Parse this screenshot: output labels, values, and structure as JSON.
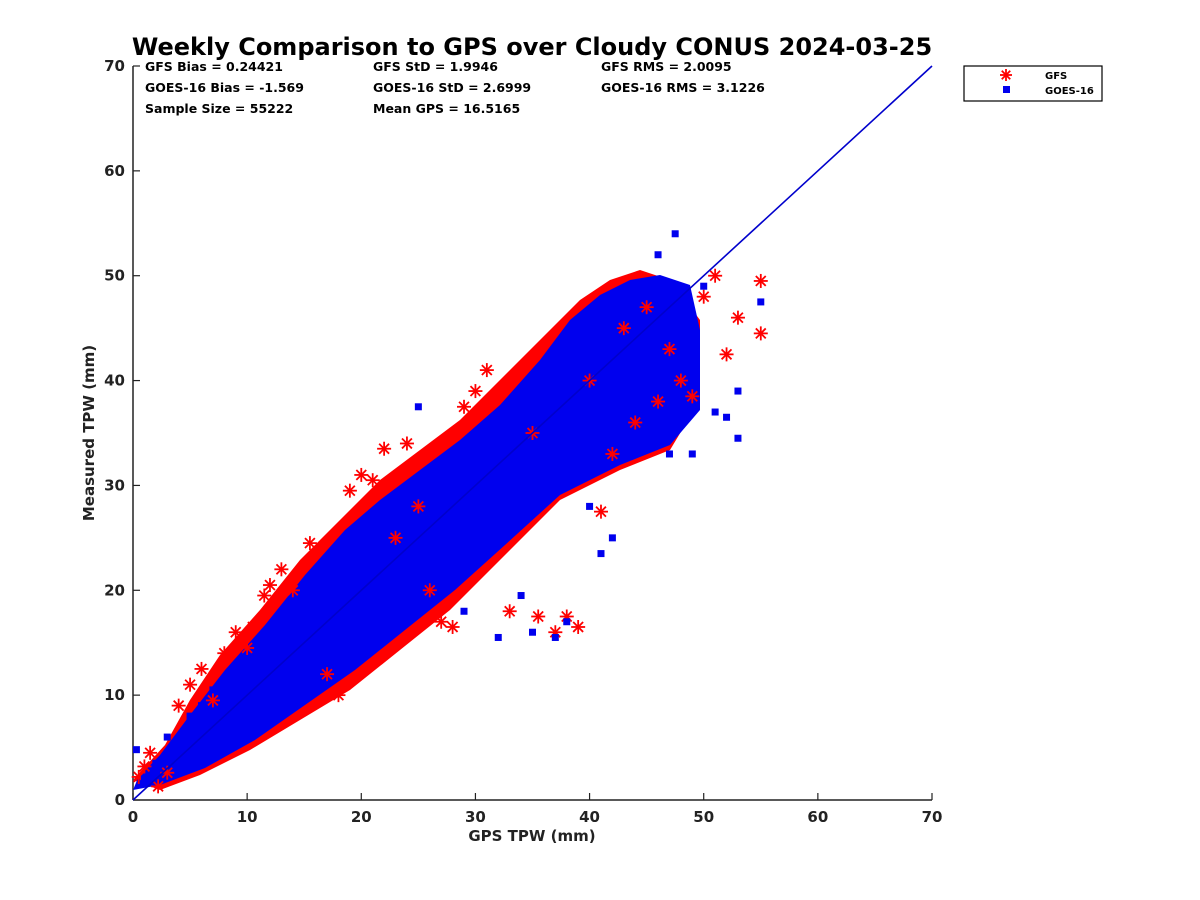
{
  "chart_data": {
    "type": "scatter",
    "title": "Weekly Comparison to GPS over Cloudy CONUS 2024-03-25",
    "xlabel": "GPS TPW (mm)",
    "ylabel": "Measured TPW (mm)",
    "xlim": [
      0,
      70
    ],
    "ylim": [
      0,
      70
    ],
    "xticks": [
      "0",
      "10",
      "20",
      "30",
      "40",
      "50",
      "60",
      "70"
    ],
    "yticks": [
      "0",
      "10",
      "20",
      "30",
      "40",
      "50",
      "60",
      "70"
    ],
    "grid": false,
    "legend_position": "outside top-right",
    "stats": [
      [
        "GFS Bias = 0.24421",
        "GFS StD = 1.9946",
        "GFS RMS = 2.0095"
      ],
      [
        "GOES-16 Bias = -1.569",
        "GOES-16 StD = 2.6999",
        "GOES-16 RMS = 3.1226"
      ],
      [
        "Sample Size = 55222",
        "Mean GPS = 16.5165"
      ]
    ],
    "reference_line": {
      "from": [
        0,
        0
      ],
      "to": [
        70,
        70
      ],
      "color": "#0000cc"
    },
    "series": [
      {
        "name": "GFS",
        "marker": "asterisk",
        "color": "#ff0000",
        "points": [
          [
            0.5,
            2.2
          ],
          [
            1.0,
            3.2
          ],
          [
            1.5,
            4.5
          ],
          [
            2.2,
            1.3
          ],
          [
            3.0,
            2.6
          ],
          [
            4.0,
            9.0
          ],
          [
            5.0,
            11.0
          ],
          [
            6.0,
            12.5
          ],
          [
            7.0,
            9.5
          ],
          [
            8.0,
            14.0
          ],
          [
            9.0,
            16.0
          ],
          [
            10.0,
            14.5
          ],
          [
            10.5,
            16.5
          ],
          [
            11.5,
            19.5
          ],
          [
            12.0,
            20.5
          ],
          [
            13.0,
            22.0
          ],
          [
            14.0,
            20.0
          ],
          [
            15.5,
            24.5
          ],
          [
            17.0,
            12.0
          ],
          [
            18.0,
            10.0
          ],
          [
            19.0,
            29.5
          ],
          [
            20.0,
            31.0
          ],
          [
            21.0,
            30.5
          ],
          [
            22.0,
            33.5
          ],
          [
            23.0,
            25.0
          ],
          [
            24.0,
            34.0
          ],
          [
            25.0,
            28.0
          ],
          [
            26.0,
            20.0
          ],
          [
            27.0,
            17.0
          ],
          [
            28.0,
            16.5
          ],
          [
            29.0,
            37.5
          ],
          [
            30.0,
            39.0
          ],
          [
            31.0,
            41.0
          ],
          [
            33.0,
            18.0
          ],
          [
            35.0,
            35.0
          ],
          [
            35.5,
            17.5
          ],
          [
            37.0,
            16.0
          ],
          [
            38.0,
            17.5
          ],
          [
            39.0,
            16.5
          ],
          [
            40.0,
            40.0
          ],
          [
            41.0,
            27.5
          ],
          [
            42.0,
            33.0
          ],
          [
            43.0,
            45.0
          ],
          [
            44.0,
            36.0
          ],
          [
            45.0,
            47.0
          ],
          [
            46.0,
            38.0
          ],
          [
            47.0,
            43.0
          ],
          [
            48.0,
            40.0
          ],
          [
            49.0,
            38.5
          ],
          [
            50.0,
            48.0
          ],
          [
            51.0,
            50.0
          ],
          [
            52.0,
            42.5
          ],
          [
            53.0,
            46.0
          ],
          [
            55.0,
            44.5
          ],
          [
            55.0,
            49.5
          ]
        ]
      },
      {
        "name": "GOES-16",
        "marker": "square",
        "color": "#0000ee",
        "points": [
          [
            0.3,
            4.8
          ],
          [
            1.0,
            2.0
          ],
          [
            2.0,
            3.5
          ],
          [
            3.0,
            6.0
          ],
          [
            4.0,
            5.0
          ],
          [
            5.0,
            8.0
          ],
          [
            6.0,
            9.0
          ],
          [
            7.0,
            10.5
          ],
          [
            8.0,
            8.0
          ],
          [
            9.0,
            12.0
          ],
          [
            10.0,
            13.0
          ],
          [
            12.0,
            11.0
          ],
          [
            14.0,
            15.0
          ],
          [
            16.0,
            16.0
          ],
          [
            18.0,
            18.0
          ],
          [
            20.0,
            22.0
          ],
          [
            22.0,
            20.5
          ],
          [
            24.0,
            25.0
          ],
          [
            25.0,
            37.5
          ],
          [
            26.0,
            26.0
          ],
          [
            28.0,
            30.0
          ],
          [
            29.0,
            18.0
          ],
          [
            30.0,
            32.0
          ],
          [
            32.0,
            15.5
          ],
          [
            33.0,
            34.0
          ],
          [
            34.0,
            19.5
          ],
          [
            35.0,
            16.0
          ],
          [
            36.0,
            36.0
          ],
          [
            37.0,
            15.5
          ],
          [
            38.0,
            17.0
          ],
          [
            39.0,
            38.0
          ],
          [
            40.0,
            28.0
          ],
          [
            41.0,
            23.5
          ],
          [
            42.0,
            25.0
          ],
          [
            43.0,
            46.0
          ],
          [
            44.0,
            43.0
          ],
          [
            45.0,
            48.0
          ],
          [
            46.0,
            52.0
          ],
          [
            47.0,
            33.0
          ],
          [
            47.5,
            54.0
          ],
          [
            48.0,
            46.0
          ],
          [
            49.0,
            33.0
          ],
          [
            50.0,
            49.0
          ],
          [
            51.0,
            37.0
          ],
          [
            52.0,
            36.5
          ],
          [
            53.0,
            39.0
          ],
          [
            53.0,
            34.5
          ],
          [
            55.0,
            47.5
          ]
        ]
      }
    ]
  }
}
